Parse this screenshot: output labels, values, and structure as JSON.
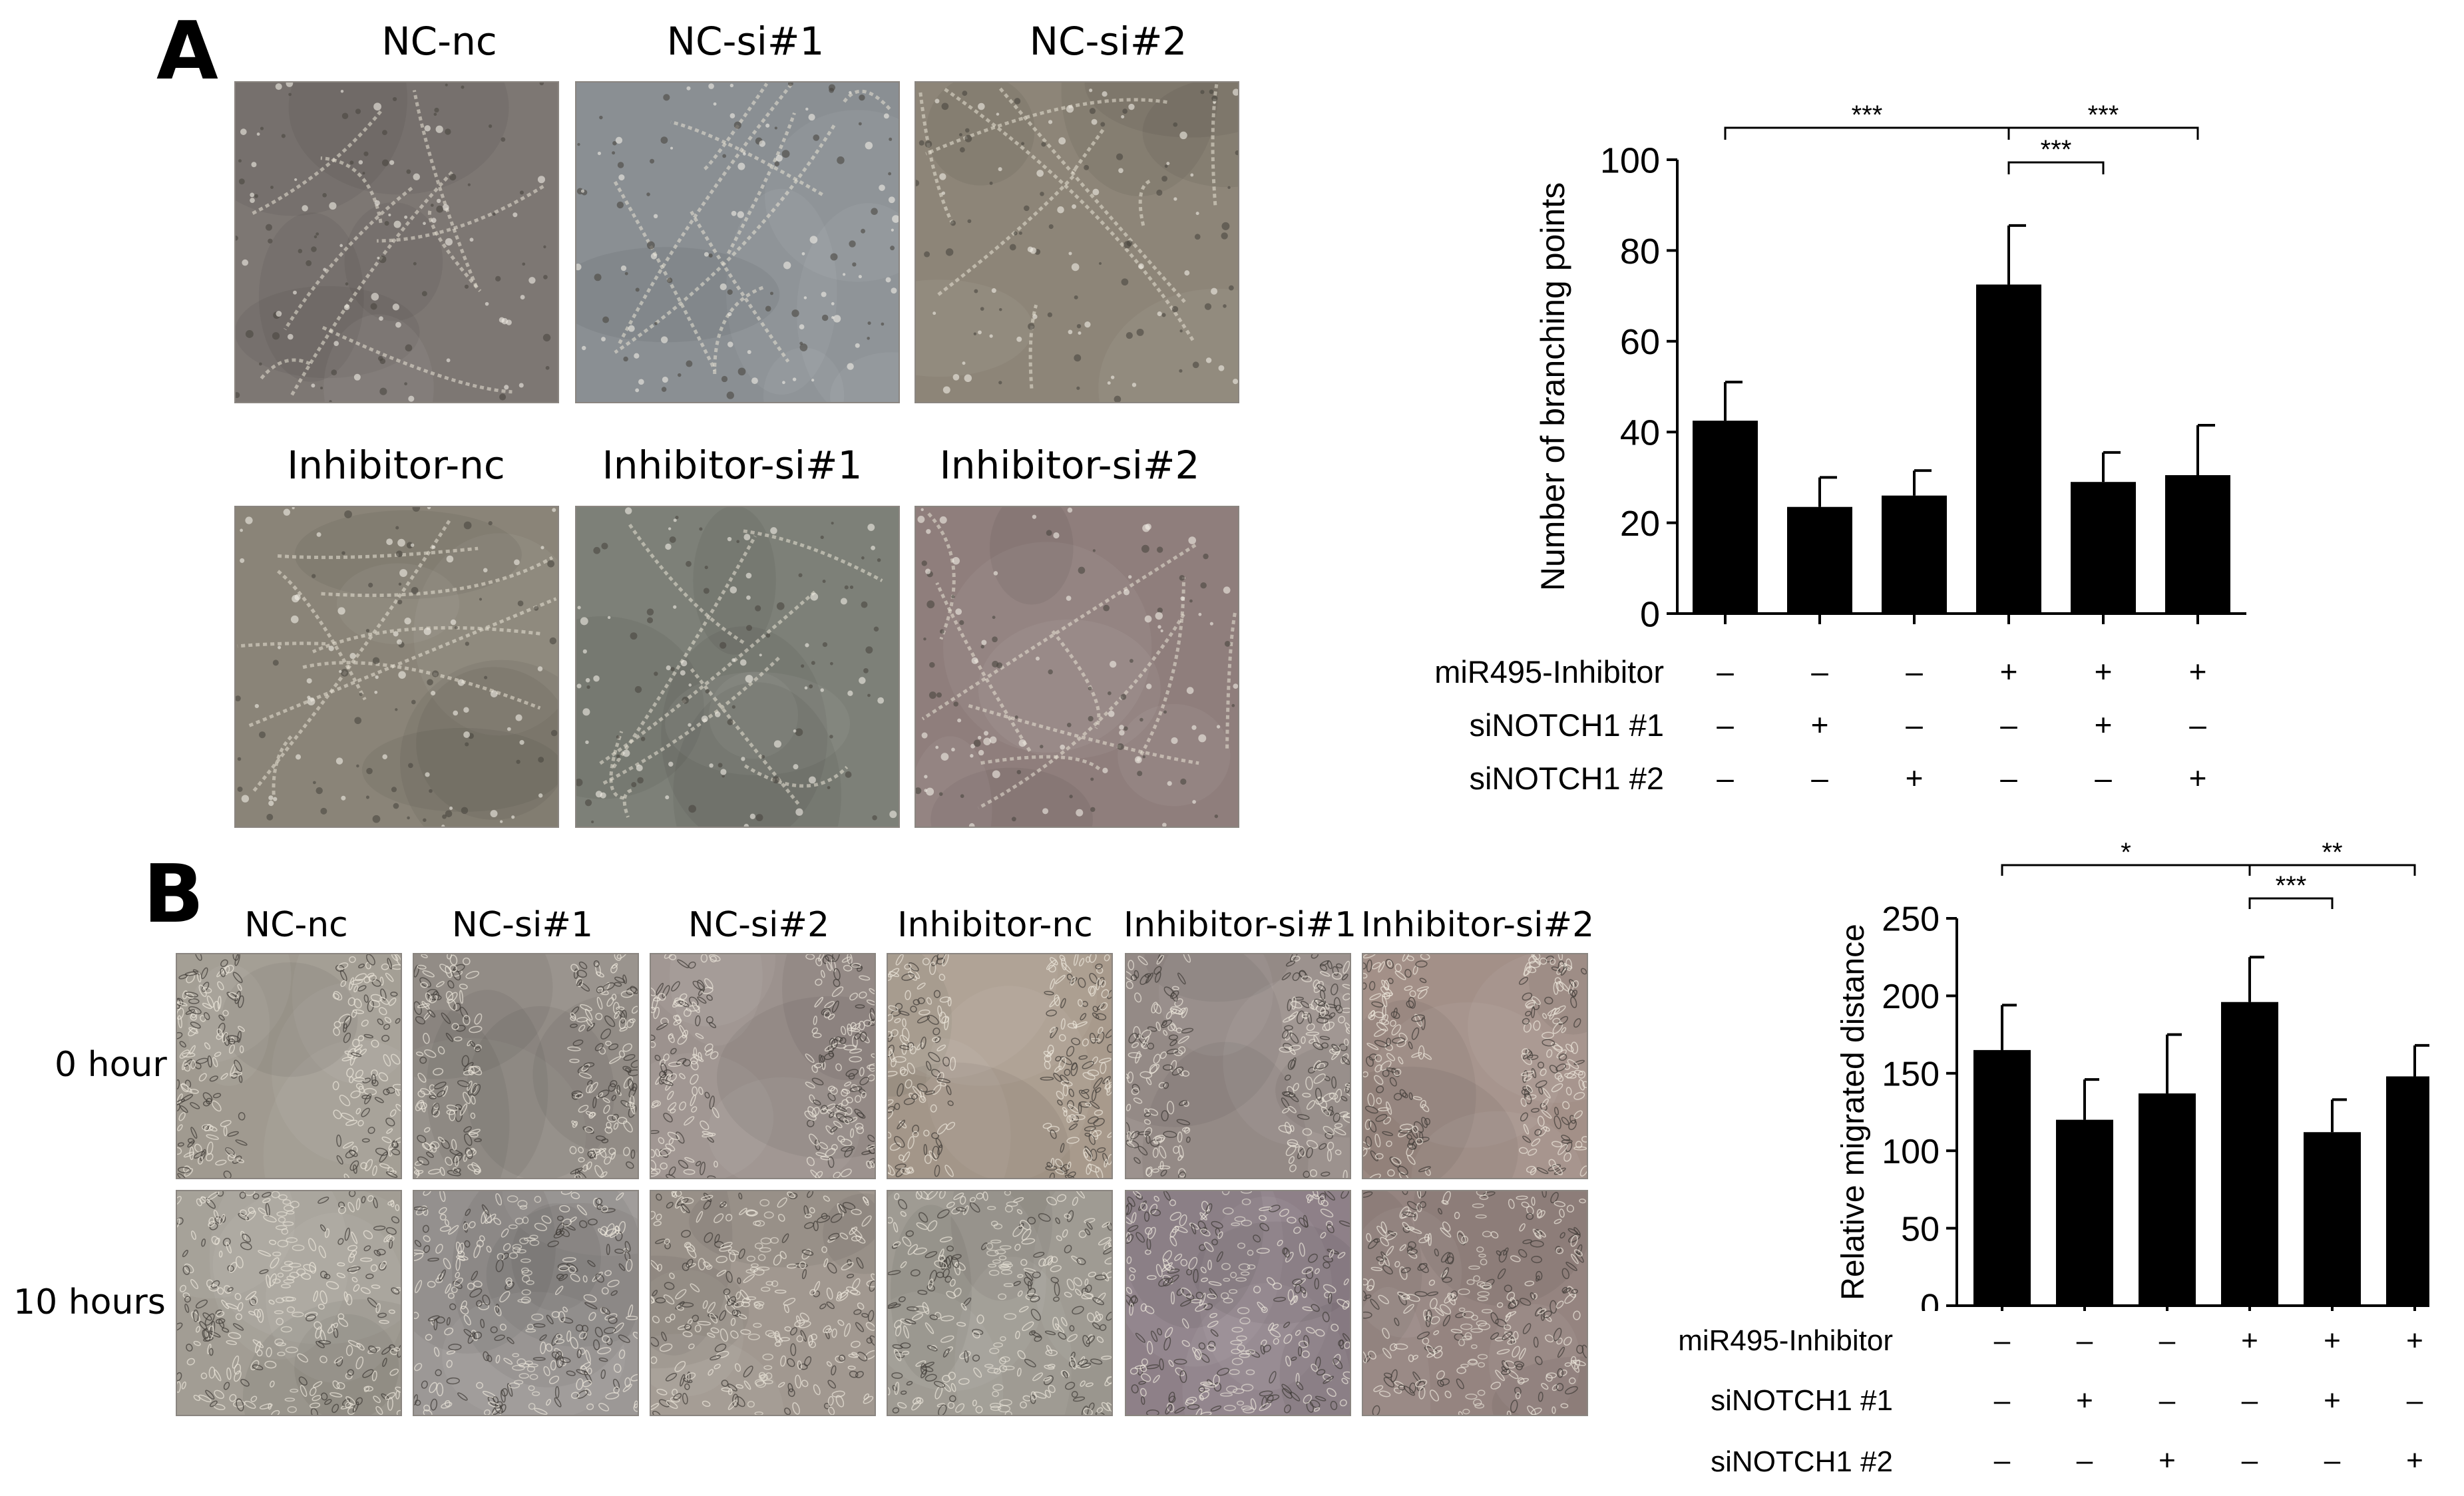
{
  "panels": {
    "a_letter": "A",
    "b_letter": "B"
  },
  "panel_a": {
    "image_labels_top": [
      "NC-nc",
      "NC-si#1",
      "NC-si#2"
    ],
    "image_labels_bottom": [
      "Inhibitor-nc",
      "Inhibitor-si#1",
      "Inhibitor-si#2"
    ]
  },
  "panel_b": {
    "image_labels": [
      "NC-nc",
      "NC-si#1",
      "NC-si#2",
      "Inhibitor-nc",
      "Inhibitor-si#1",
      "Inhibitor-si#2"
    ],
    "row_labels": [
      "0 hour",
      "10 hours"
    ]
  },
  "conditions": {
    "labels": [
      "miR495-Inhibitor",
      "siNOTCH1 #1",
      "siNOTCH1 #2"
    ],
    "rows": [
      [
        "–",
        "–",
        "–",
        "+",
        "+",
        "+"
      ],
      [
        "–",
        "+",
        "–",
        "–",
        "+",
        "–"
      ],
      [
        "–",
        "–",
        "+",
        "–",
        "–",
        "+"
      ]
    ]
  },
  "chart_data": [
    {
      "type": "bar",
      "ylabel": "Number of branching points",
      "ylim": [
        0,
        100
      ],
      "yticks": [
        0,
        20,
        40,
        60,
        80,
        100
      ],
      "values": [
        42.5,
        23.5,
        26,
        72.5,
        29,
        30.5
      ],
      "errors": [
        8.5,
        6.5,
        5.5,
        13,
        6.5,
        11
      ],
      "significance": [
        {
          "from": 0,
          "to": 3,
          "label": "***"
        },
        {
          "from": 3,
          "to": 5,
          "label": "***"
        },
        {
          "from": 3,
          "to": 4,
          "label": "***"
        }
      ],
      "bar_color": "#000000"
    },
    {
      "type": "bar",
      "ylabel": "Relative migrated distance",
      "ylim": [
        0,
        250
      ],
      "yticks": [
        0,
        50,
        100,
        150,
        200,
        250
      ],
      "values": [
        165,
        120,
        137,
        196,
        112,
        148
      ],
      "errors": [
        29,
        26,
        38,
        29,
        21,
        20
      ],
      "significance": [
        {
          "from": 0,
          "to": 3,
          "label": "*"
        },
        {
          "from": 3,
          "to": 5,
          "label": "**"
        },
        {
          "from": 3,
          "to": 4,
          "label": "***"
        }
      ],
      "bar_color": "#000000"
    }
  ]
}
